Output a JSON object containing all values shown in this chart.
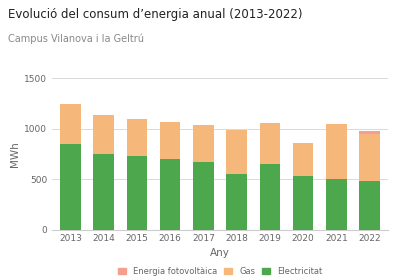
{
  "years": [
    2013,
    2014,
    2015,
    2016,
    2017,
    2018,
    2019,
    2020,
    2021,
    2022
  ],
  "electricitat": [
    850,
    750,
    730,
    700,
    670,
    550,
    650,
    530,
    500,
    480
  ],
  "gas": [
    400,
    390,
    370,
    370,
    370,
    440,
    410,
    330,
    550,
    468
  ],
  "fotovoltaica": [
    0,
    0,
    0,
    0,
    0,
    0,
    0,
    0,
    0,
    28
  ],
  "color_electricitat": "#4da84d",
  "color_gas": "#f5b87a",
  "color_fotovoltaica": "#f4a090",
  "title": "Evolució del consum d’energia anual (2013-2022)",
  "subtitle": "Campus Vilanova i la Geltrú",
  "xlabel": "Any",
  "ylabel": "MWh",
  "ylim": [
    0,
    1500
  ],
  "yticks": [
    0,
    500,
    1000,
    1500
  ],
  "legend_labels": [
    "Energia fotovoltàica",
    "Gas",
    "Electricitat"
  ],
  "background_color": "#ffffff",
  "grid_color": "#d5d5d5"
}
